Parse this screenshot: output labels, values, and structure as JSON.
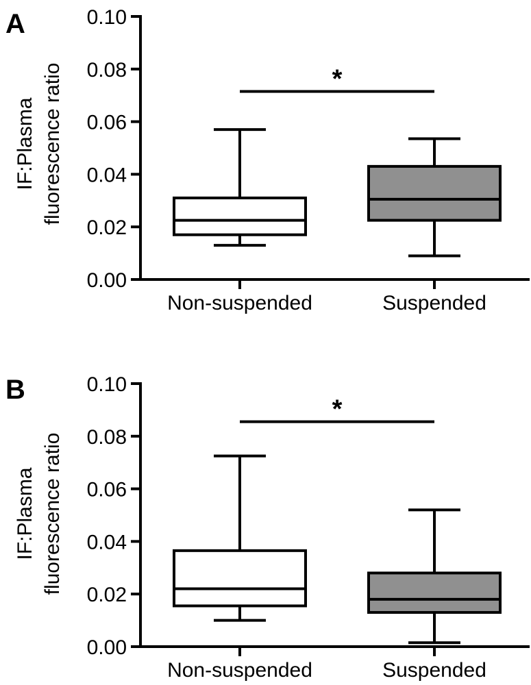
{
  "chart_data": [
    {
      "type": "box",
      "panel_label": "A",
      "ylabel_line1": "IF:Plasma",
      "ylabel_line2": "fluorescence ratio",
      "ylim": [
        0,
        0.1
      ],
      "yticks": [
        "0.00",
        "0.02",
        "0.04",
        "0.06",
        "0.08",
        "0.10"
      ],
      "categories": [
        "Non-suspended",
        "Suspended"
      ],
      "boxes": [
        {
          "category": "Non-suspended",
          "min": 0.013,
          "q1": 0.017,
          "median": 0.0225,
          "q3": 0.031,
          "max": 0.057,
          "fill": "#ffffff"
        },
        {
          "category": "Suspended",
          "min": 0.009,
          "q1": 0.0225,
          "median": 0.0305,
          "q3": 0.043,
          "max": 0.0535,
          "fill": "#909090"
        }
      ],
      "significance": {
        "label": "*",
        "y": 0.0715
      }
    },
    {
      "type": "box",
      "panel_label": "B",
      "ylabel_line1": "IF:Plasma",
      "ylabel_line2": "fluorescence ratio",
      "ylim": [
        0,
        0.1
      ],
      "yticks": [
        "0.00",
        "0.02",
        "0.04",
        "0.06",
        "0.08",
        "0.10"
      ],
      "categories": [
        "Non-suspended",
        "Suspended"
      ],
      "boxes": [
        {
          "category": "Non-suspended",
          "min": 0.01,
          "q1": 0.0155,
          "median": 0.022,
          "q3": 0.0365,
          "max": 0.0725,
          "fill": "#ffffff"
        },
        {
          "category": "Suspended",
          "min": 0.0015,
          "q1": 0.013,
          "median": 0.018,
          "q3": 0.028,
          "max": 0.052,
          "fill": "#909090"
        }
      ],
      "significance": {
        "label": "*",
        "y": 0.0855
      }
    }
  ]
}
